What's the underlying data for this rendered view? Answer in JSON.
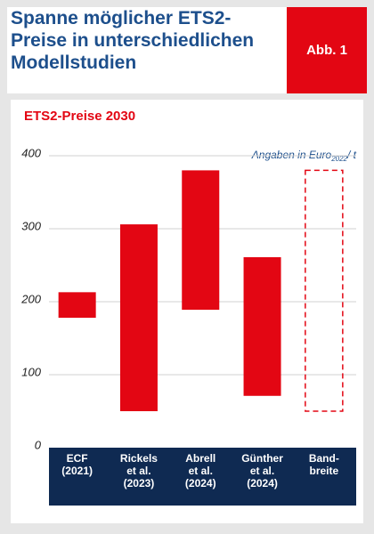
{
  "chart_data": {
    "type": "range_bar",
    "title": "Spanne möglicher ETS2-Preise in unterschiedlichen Modellstudien",
    "badge": "Abb. 1",
    "subtitle": "ETS2-Preise 2030",
    "unit_label": {
      "prefix": "Angaben in Euro",
      "sub": "2022",
      "suffix": "/ t"
    },
    "categories": [
      "ECF\n(2021)",
      "Rickels\net al.\n(2023)",
      "Abrell\net al.\n(2024)",
      "Günther\net al.\n(2024)",
      "Band-\nbreite"
    ],
    "low": [
      178,
      50,
      189,
      71,
      50
    ],
    "high": [
      213,
      306,
      380,
      261,
      380
    ],
    "dashed": [
      false,
      false,
      false,
      false,
      true
    ],
    "color": "#e30613",
    "ylim": [
      0,
      400
    ],
    "yticks": [
      0,
      100,
      200,
      300,
      400
    ],
    "grid": true
  }
}
